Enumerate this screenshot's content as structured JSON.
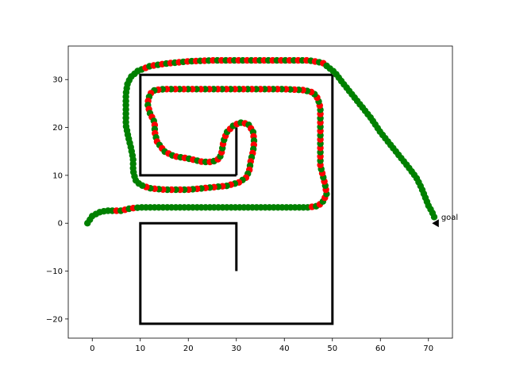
{
  "chart_data": {
    "type": "scatter",
    "title": "",
    "xlabel": "",
    "ylabel": "",
    "xlim": [
      -5,
      75
    ],
    "ylim": [
      -24,
      37
    ],
    "xticks": [
      0,
      10,
      20,
      30,
      40,
      50,
      60,
      70
    ],
    "yticks": [
      -20,
      -10,
      0,
      10,
      20,
      30
    ],
    "grid": false,
    "colors": {
      "point_a": "#008000",
      "point_b": "#ff0000",
      "walls": "#000000",
      "goal": "#000000"
    },
    "walls": [
      {
        "name": "upper-box",
        "points": [
          [
            30,
            10
          ],
          [
            10,
            10
          ],
          [
            10,
            31
          ],
          [
            50,
            31
          ]
        ]
      },
      {
        "name": "upper-inner-post",
        "points": [
          [
            30,
            10
          ],
          [
            30,
            20
          ]
        ]
      },
      {
        "name": "outer-right-wall",
        "points": [
          [
            50,
            31
          ],
          [
            50,
            -21
          ],
          [
            10,
            -21
          ],
          [
            10,
            0
          ],
          [
            30,
            0
          ],
          [
            30,
            -10
          ]
        ]
      }
    ],
    "goal": {
      "x": 71.5,
      "y": 0,
      "label": "goal"
    },
    "path": {
      "name": "trajectory",
      "waypoints": [
        [
          -1,
          0
        ],
        [
          0,
          1.5
        ],
        [
          1.5,
          2.3
        ],
        [
          3,
          2.6
        ],
        [
          6,
          2.6
        ],
        [
          8,
          3.1
        ],
        [
          10,
          3.3
        ],
        [
          20,
          3.3
        ],
        [
          30,
          3.3
        ],
        [
          40,
          3.3
        ],
        [
          45,
          3.3
        ],
        [
          47,
          3.6
        ],
        [
          48,
          4.5
        ],
        [
          48.8,
          6
        ],
        [
          48.5,
          8
        ],
        [
          48,
          10
        ],
        [
          47.5,
          12
        ],
        [
          47.5,
          16
        ],
        [
          47.5,
          20
        ],
        [
          47.5,
          24
        ],
        [
          47,
          26
        ],
        [
          46,
          27.3
        ],
        [
          44,
          27.8
        ],
        [
          40,
          28
        ],
        [
          35,
          28
        ],
        [
          30,
          28
        ],
        [
          25,
          28
        ],
        [
          20,
          28
        ],
        [
          15,
          28
        ],
        [
          13,
          27.8
        ],
        [
          12,
          27
        ],
        [
          11.5,
          25
        ],
        [
          12,
          23
        ],
        [
          13,
          21
        ],
        [
          13,
          19
        ],
        [
          13.5,
          17
        ],
        [
          15,
          15
        ],
        [
          17,
          14
        ],
        [
          20,
          13.5
        ],
        [
          23,
          12.8
        ],
        [
          25,
          12.8
        ],
        [
          26.5,
          13.5
        ],
        [
          27,
          15
        ],
        [
          27.3,
          17
        ],
        [
          28,
          19
        ],
        [
          29.5,
          20.5
        ],
        [
          31,
          21
        ],
        [
          32.5,
          20.7
        ],
        [
          33.5,
          19
        ],
        [
          33.7,
          17
        ],
        [
          33.5,
          15
        ],
        [
          33,
          13
        ],
        [
          32.7,
          11
        ],
        [
          32,
          9.5
        ],
        [
          30.5,
          8.5
        ],
        [
          28,
          7.8
        ],
        [
          25,
          7.5
        ],
        [
          20,
          7
        ],
        [
          15,
          7
        ],
        [
          12,
          7.3
        ],
        [
          10,
          8
        ],
        [
          9,
          9
        ],
        [
          8.5,
          11
        ],
        [
          8.5,
          13.5
        ],
        [
          8,
          16
        ],
        [
          7.5,
          18
        ],
        [
          7,
          20.5
        ],
        [
          7,
          23
        ],
        [
          7,
          25
        ],
        [
          7,
          27
        ],
        [
          7.3,
          29
        ],
        [
          8,
          30.5
        ],
        [
          9.5,
          31.8
        ],
        [
          12,
          32.8
        ],
        [
          15,
          33.3
        ],
        [
          20,
          33.8
        ],
        [
          25,
          34
        ],
        [
          30,
          34
        ],
        [
          35,
          34
        ],
        [
          40,
          34
        ],
        [
          45,
          34
        ],
        [
          48,
          33.5
        ],
        [
          50.5,
          31.5
        ],
        [
          52,
          29.5
        ],
        [
          54,
          27
        ],
        [
          56,
          24.5
        ],
        [
          58,
          22
        ],
        [
          60,
          19
        ],
        [
          62,
          16.5
        ],
        [
          64,
          14
        ],
        [
          66,
          11.5
        ],
        [
          67.5,
          9.5
        ],
        [
          68.5,
          7.5
        ],
        [
          69.3,
          5.5
        ],
        [
          70,
          3.7
        ],
        [
          70.7,
          2.5
        ],
        [
          71.2,
          1.3
        ]
      ],
      "point_count": 320
    }
  }
}
